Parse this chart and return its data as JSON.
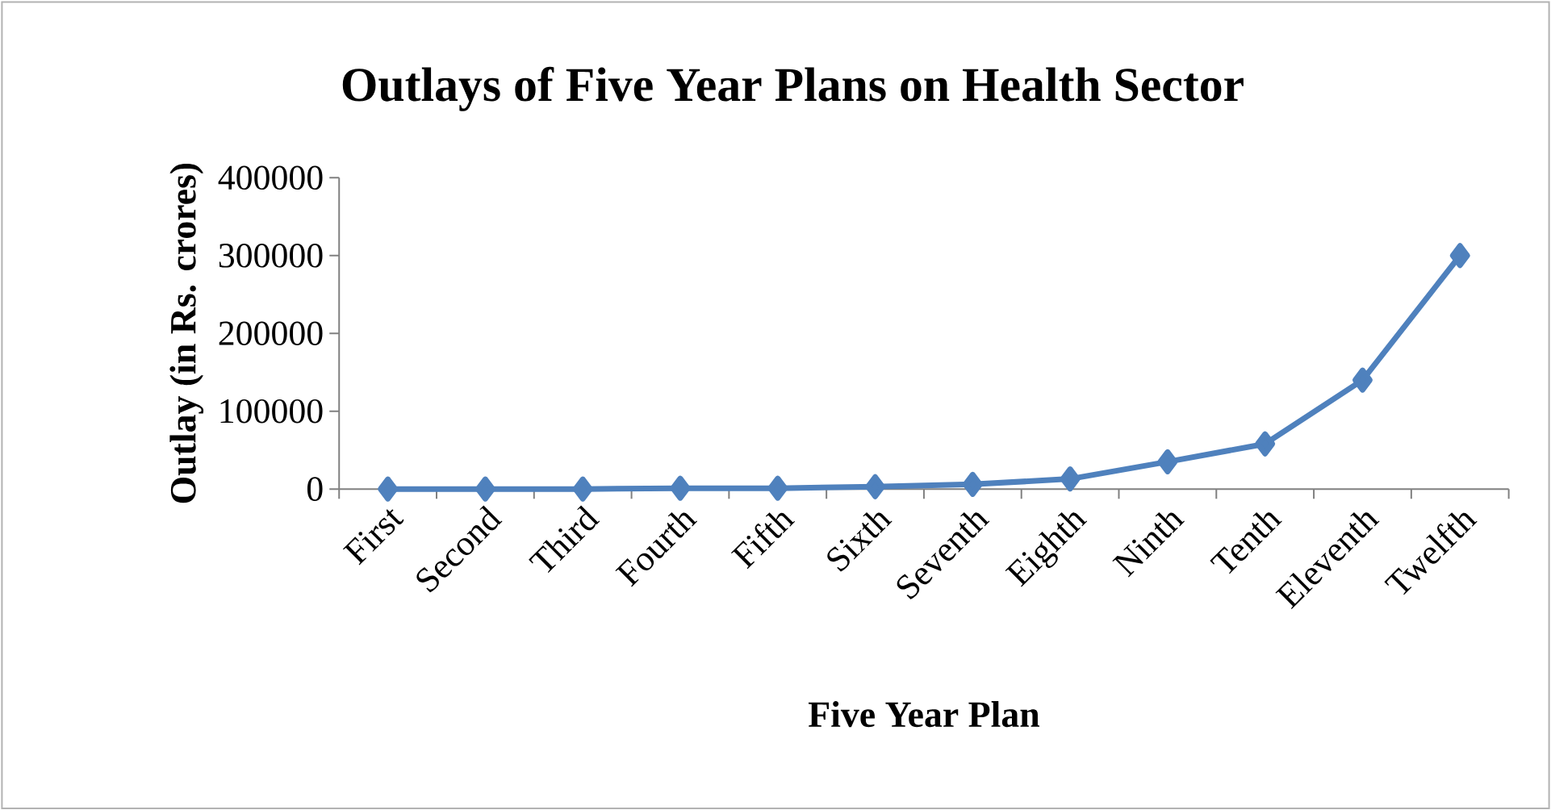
{
  "chart_data": {
    "type": "line",
    "title": "Outlays of Five Year Plans on Health Sector",
    "xlabel": "Five Year Plan",
    "ylabel": "Outlay (in Rs. crores)",
    "categories": [
      "First",
      "Second",
      "Third",
      "Fourth",
      "Fifth",
      "Sixth",
      "Seventh",
      "Eighth",
      "Ninth",
      "Tenth",
      "Eleventh",
      "Twelfth"
    ],
    "series": [
      {
        "color": "#4f81bd",
        "values": [
          0,
          0,
          0,
          1000,
          1000,
          3000,
          6000,
          13000,
          35000,
          58000,
          140000,
          300000
        ]
      }
    ],
    "ylim": [
      0,
      400000
    ],
    "yticks": [
      0,
      100000,
      200000,
      300000,
      400000
    ],
    "marker": "diamond",
    "line_style": "solid",
    "grid": false
  }
}
